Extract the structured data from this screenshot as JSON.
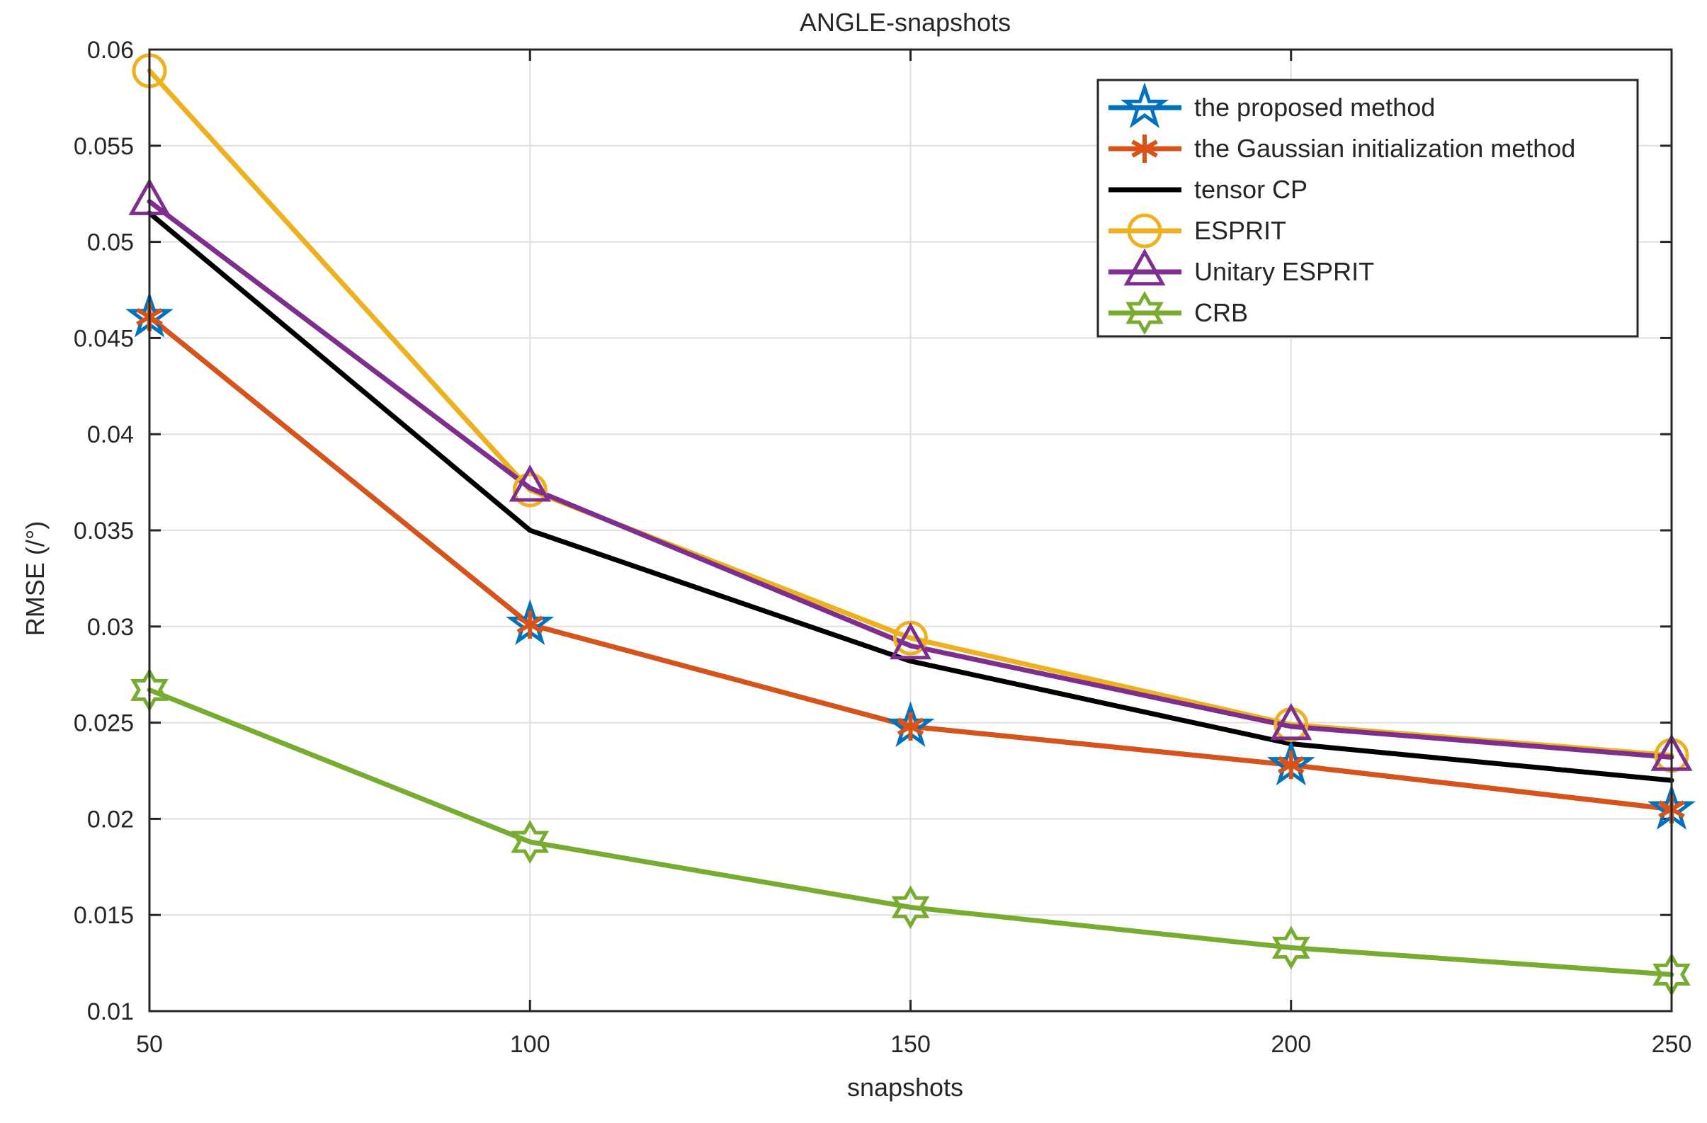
{
  "chart_data": {
    "type": "line",
    "title": "ANGLE-snapshots",
    "xlabel": "snapshots",
    "ylabel": "RMSE (/°)",
    "xlim": [
      50,
      250
    ],
    "ylim": [
      0.01,
      0.06
    ],
    "xticks": [
      50,
      100,
      150,
      200,
      250
    ],
    "xtick_labels": [
      "50",
      "100",
      "150",
      "200",
      "250"
    ],
    "yticks": [
      0.01,
      0.015,
      0.02,
      0.025,
      0.03,
      0.035,
      0.04,
      0.045,
      0.05,
      0.055,
      0.06
    ],
    "ytick_labels": [
      "0.01",
      "0.015",
      "0.02",
      "0.025",
      "0.03",
      "0.035",
      "0.04",
      "0.045",
      "0.05",
      "0.055",
      "0.06"
    ],
    "grid": true,
    "legend_position": "top-right",
    "x": [
      50,
      100,
      150,
      200,
      250
    ],
    "series": [
      {
        "name": "the proposed method",
        "color": "#0072BD",
        "marker": "pentagram",
        "values": [
          0.0461,
          0.0301,
          0.0248,
          0.0228,
          0.0205
        ]
      },
      {
        "name": "the Gaussian initialization method",
        "color": "#D95319",
        "marker": "asterisk",
        "values": [
          0.0461,
          0.0301,
          0.0248,
          0.0228,
          0.0205
        ]
      },
      {
        "name": "tensor CP",
        "color": "#000000",
        "marker": "none",
        "values": [
          0.0515,
          0.035,
          0.0282,
          0.0239,
          0.022
        ]
      },
      {
        "name": "ESPRIT",
        "color": "#EDB120",
        "marker": "circle",
        "values": [
          0.0589,
          0.0371,
          0.0294,
          0.0249,
          0.0233
        ]
      },
      {
        "name": "Unitary ESPRIT",
        "color": "#7E2F8E",
        "marker": "triangle",
        "values": [
          0.0521,
          0.0372,
          0.029,
          0.0248,
          0.0232
        ]
      },
      {
        "name": "CRB",
        "color": "#77AC30",
        "marker": "hexagram",
        "values": [
          0.0267,
          0.0188,
          0.0154,
          0.0133,
          0.0119
        ]
      }
    ]
  }
}
